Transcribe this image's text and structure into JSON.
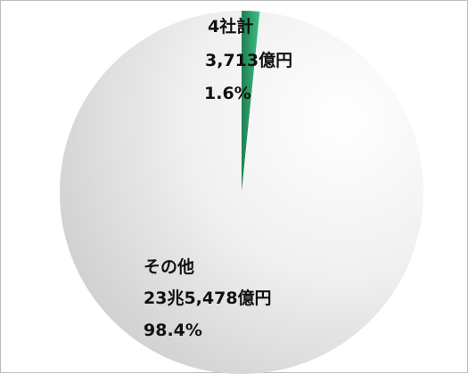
{
  "chart_data": {
    "type": "pie",
    "slices": [
      {
        "label": "4社計",
        "amount": "3,713億円",
        "percent_label": "1.6%",
        "value": 1.6,
        "color": "#2e9f6e"
      },
      {
        "label": "その他",
        "amount": "23兆5,478億円",
        "percent_label": "98.4%",
        "value": 98.4,
        "color": "#e6e6e6"
      }
    ],
    "start": "12 o'clock",
    "direction": "clockwise",
    "legend": "none"
  }
}
